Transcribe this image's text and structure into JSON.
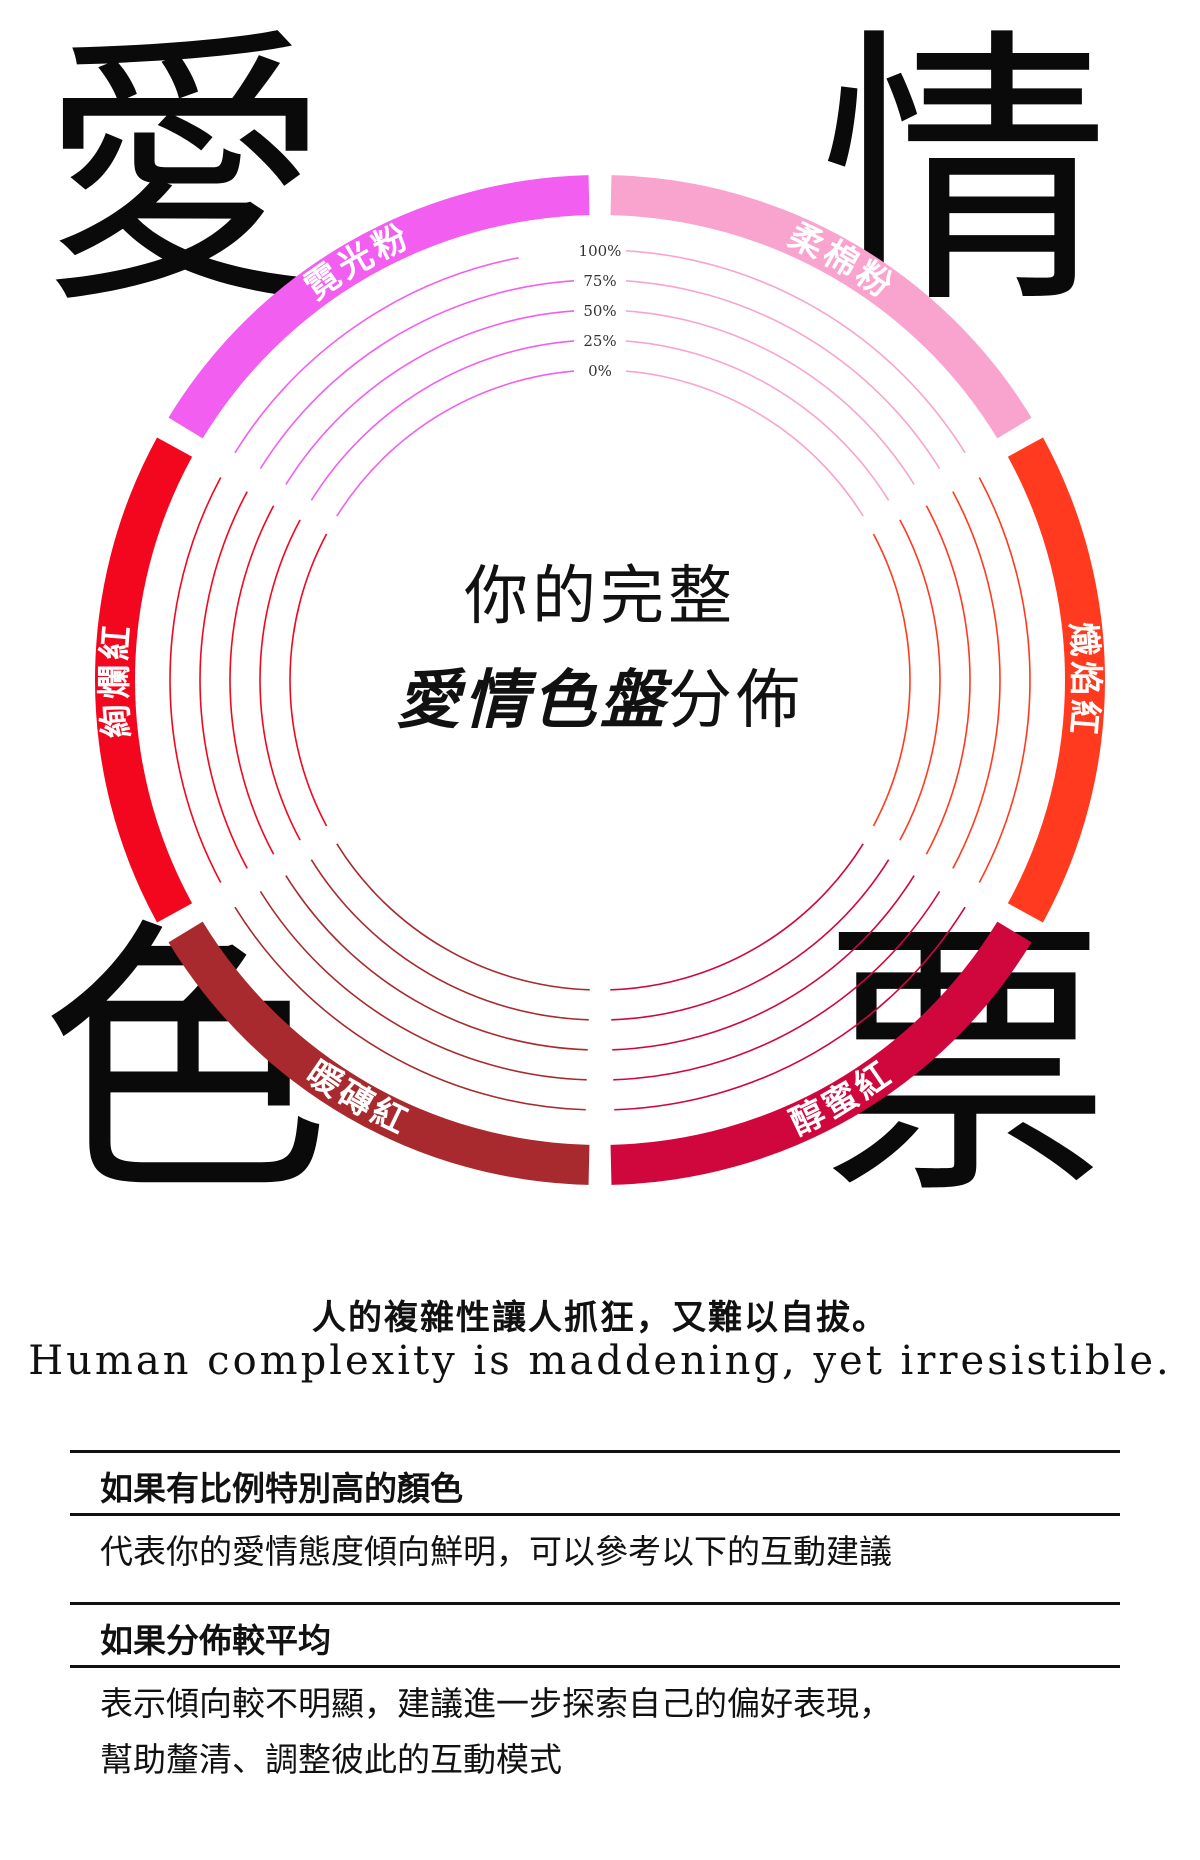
{
  "corner_chars": {
    "top_left": "愛",
    "top_right": "情",
    "bottom_left": "色",
    "bottom_right": "票"
  },
  "chart_data": {
    "type": "radial_bar",
    "center_title_line1": "你的完整",
    "center_title_emphasis": "愛情色盤",
    "center_title_suffix": "分佈",
    "scale_labels": [
      "0%",
      "25%",
      "50%",
      "75%",
      "100%"
    ],
    "categories": [
      "柔棉粉",
      "熾焰紅",
      "醇蜜紅",
      "暖磚紅",
      "絢爛紅",
      "霓光粉"
    ],
    "values": [
      0,
      0,
      0,
      0,
      0,
      0
    ],
    "colors": [
      "#f9a3cf",
      "#ff3a1e",
      "#d0073c",
      "#a82a2e",
      "#f2071e",
      "#f25ef0"
    ]
  },
  "tagline": {
    "zh": "人的複雜性讓人抓狂，又難以自拔。",
    "en": "Human complexity is maddening, yet irresistible."
  },
  "sections": [
    {
      "title": "如果有比例特別高的顏色",
      "body": [
        "代表你的愛情態度傾向鮮明，可以參考以下的互動建議"
      ]
    },
    {
      "title": "如果分佈較平均",
      "body": [
        "表示傾向較不明顯，建議進一步探索自己的偏好表現，",
        "幫助釐清、調整彼此的互動模式"
      ]
    }
  ]
}
